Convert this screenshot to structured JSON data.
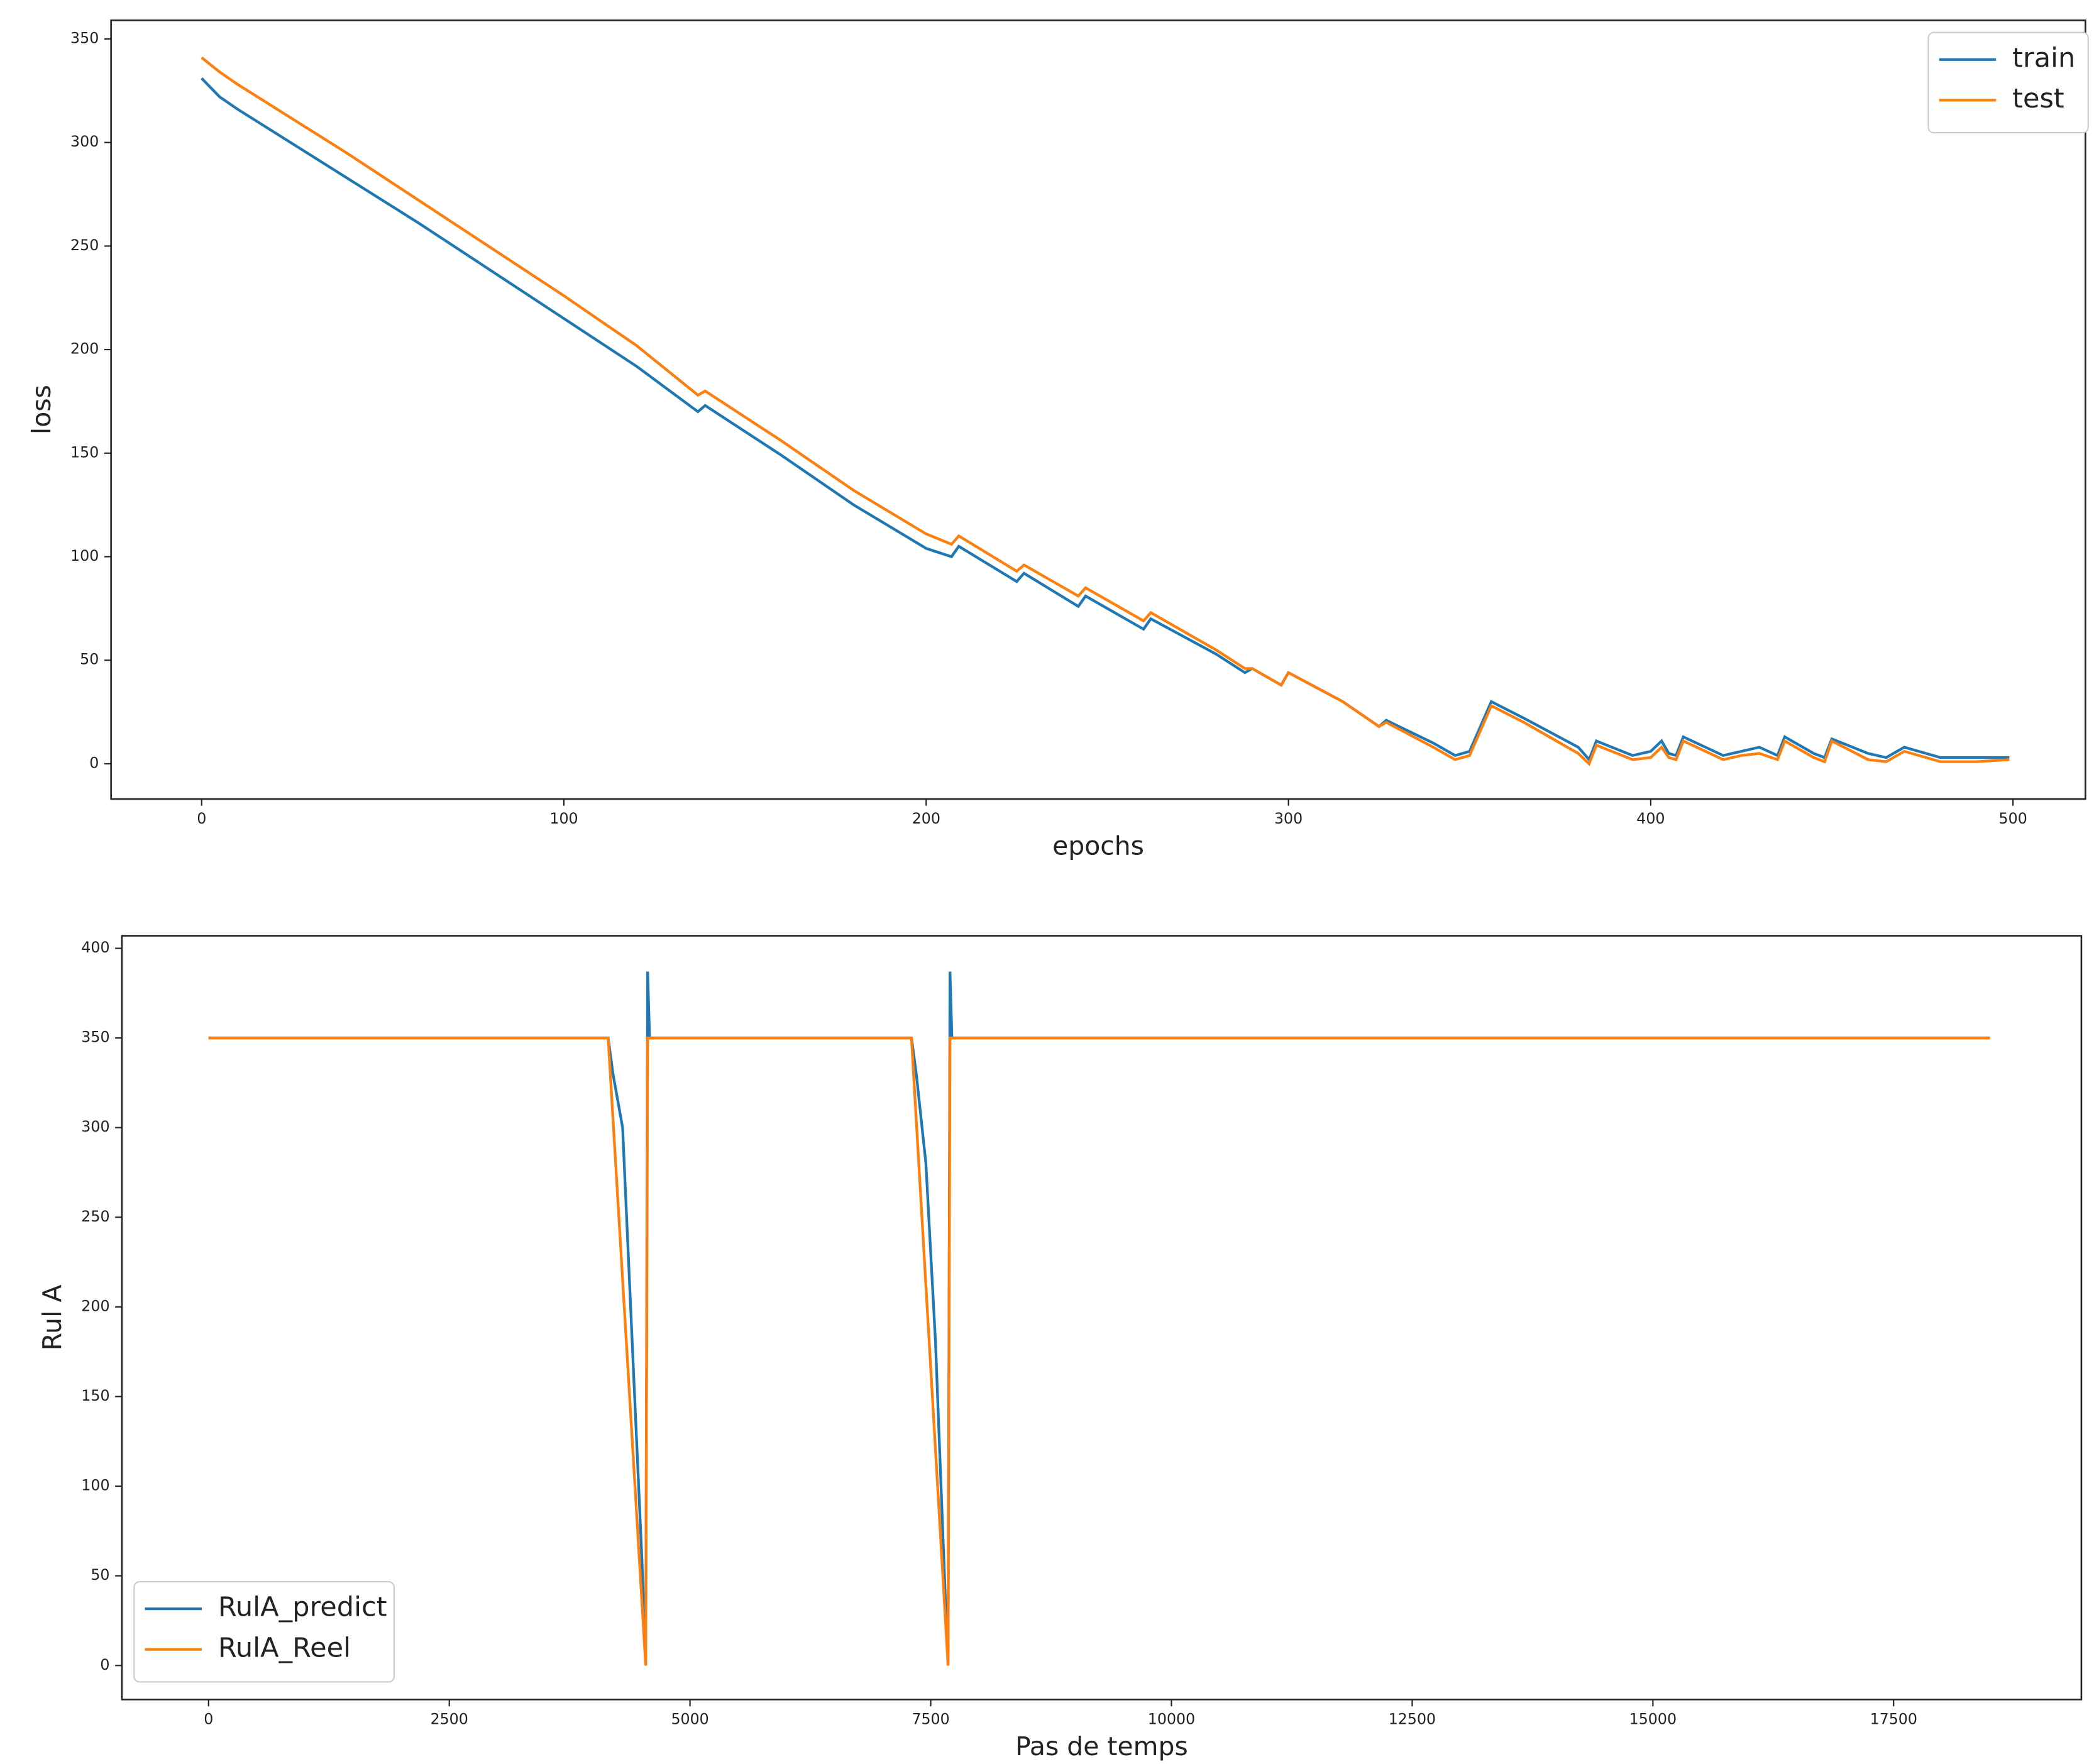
{
  "chart_data": [
    {
      "type": "line",
      "xlabel": "epochs",
      "ylabel": "loss",
      "xlim": [
        -25,
        520
      ],
      "ylim": [
        -17,
        359
      ],
      "xticks": [
        0,
        100,
        200,
        300,
        400,
        500
      ],
      "yticks": [
        0,
        50,
        100,
        150,
        200,
        250,
        300,
        350
      ],
      "legend": "upper right",
      "series": [
        {
          "name": "train",
          "color": "#1f77b4",
          "x": [
            0,
            5,
            10,
            20,
            30,
            40,
            60,
            80,
            100,
            120,
            137,
            139,
            160,
            180,
            200,
            207,
            209,
            225,
            227,
            242,
            244,
            260,
            262,
            280,
            288,
            290,
            298,
            300,
            315,
            325,
            327,
            340,
            346,
            350,
            356,
            365,
            380,
            383,
            385,
            395,
            400,
            403,
            405,
            407,
            409,
            420,
            425,
            430,
            435,
            437,
            445,
            448,
            450,
            460,
            465,
            470,
            480,
            490,
            499
          ],
          "values": [
            331,
            322,
            316,
            305,
            294,
            283,
            261,
            238,
            215,
            192,
            170,
            173,
            149,
            125,
            104,
            100,
            105,
            88,
            92,
            76,
            81,
            65,
            70,
            53,
            44,
            46,
            38,
            44,
            30,
            18,
            21,
            10,
            4,
            6,
            30,
            22,
            8,
            2,
            11,
            4,
            6,
            11,
            5,
            4,
            13,
            4,
            6,
            8,
            4,
            13,
            5,
            3,
            12,
            5,
            3,
            8,
            3,
            3,
            3
          ]
        },
        {
          "name": "test",
          "color": "#ff7f0e",
          "x": [
            0,
            5,
            10,
            20,
            30,
            40,
            60,
            80,
            100,
            120,
            137,
            139,
            160,
            180,
            200,
            207,
            209,
            225,
            227,
            242,
            244,
            260,
            262,
            280,
            288,
            290,
            298,
            300,
            315,
            325,
            327,
            340,
            346,
            350,
            356,
            365,
            380,
            383,
            385,
            395,
            400,
            403,
            405,
            407,
            409,
            420,
            425,
            430,
            435,
            437,
            445,
            448,
            450,
            460,
            465,
            470,
            480,
            490,
            499
          ],
          "values": [
            341,
            334,
            328,
            317,
            306,
            295,
            272,
            249,
            226,
            202,
            178,
            180,
            156,
            132,
            111,
            106,
            110,
            93,
            96,
            81,
            85,
            69,
            73,
            55,
            46,
            46,
            38,
            44,
            30,
            18,
            20,
            8,
            2,
            4,
            28,
            20,
            5,
            0,
            9,
            2,
            3,
            8,
            3,
            2,
            11,
            2,
            4,
            5,
            2,
            11,
            3,
            1,
            11,
            2,
            1,
            6,
            1,
            1,
            2
          ]
        }
      ]
    },
    {
      "type": "line",
      "xlabel": "Pas de temps",
      "ylabel": "Rul A",
      "xlim": [
        -900,
        19450
      ],
      "ylim": [
        -19,
        407
      ],
      "xticks": [
        0,
        2500,
        5000,
        7500,
        10000,
        12500,
        15000,
        17500
      ],
      "yticks": [
        0,
        50,
        100,
        150,
        200,
        250,
        300,
        350,
        400
      ],
      "legend": "lower left",
      "series": [
        {
          "name": "RulA_predict",
          "color": "#1f77b4",
          "x": [
            0,
            4150,
            4200,
            4300,
            4400,
            4500,
            4540,
            4560,
            4580,
            7300,
            7350,
            7450,
            7550,
            7650,
            7680,
            7700,
            7720,
            18500
          ],
          "values": [
            350,
            350,
            330,
            300,
            180,
            60,
            0,
            387,
            350,
            350,
            330,
            280,
            180,
            40,
            0,
            387,
            350,
            350
          ]
        },
        {
          "name": "RulA_Reel",
          "color": "#ff7f0e",
          "x": [
            0,
            4150,
            4540,
            4560,
            7300,
            7680,
            7700,
            18500
          ],
          "values": [
            350,
            350,
            0,
            350,
            350,
            0,
            350,
            350
          ]
        }
      ]
    }
  ]
}
